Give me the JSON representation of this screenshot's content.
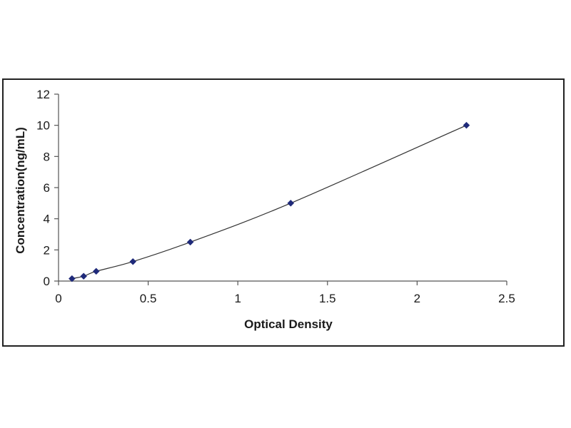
{
  "chart_data": {
    "type": "scatter",
    "title": "",
    "xlabel": "Optical Density",
    "ylabel": "Concentration(ng/mL)",
    "xlim": [
      0,
      2.5
    ],
    "ylim": [
      0,
      12
    ],
    "x_ticks": [
      0,
      0.5,
      1,
      1.5,
      2,
      2.5
    ],
    "x_tick_labels": [
      "0",
      "0.5",
      "1",
      "1.5",
      "2",
      "2.5"
    ],
    "y_ticks": [
      0,
      2,
      4,
      6,
      8,
      10,
      12
    ],
    "y_tick_labels": [
      "0",
      "2",
      "4",
      "6",
      "8",
      "10",
      "12"
    ],
    "grid": false,
    "legend": "none",
    "series": [
      {
        "x": [
          0.075,
          0.14,
          0.21,
          0.415,
          0.735,
          1.295,
          2.275
        ],
        "y": [
          0.156,
          0.312,
          0.625,
          1.25,
          2.5,
          5,
          10
        ],
        "marker": "diamond",
        "marker_color": "#1f2a7a",
        "trendline": "smooth curve",
        "line_color": "#333333"
      }
    ]
  }
}
